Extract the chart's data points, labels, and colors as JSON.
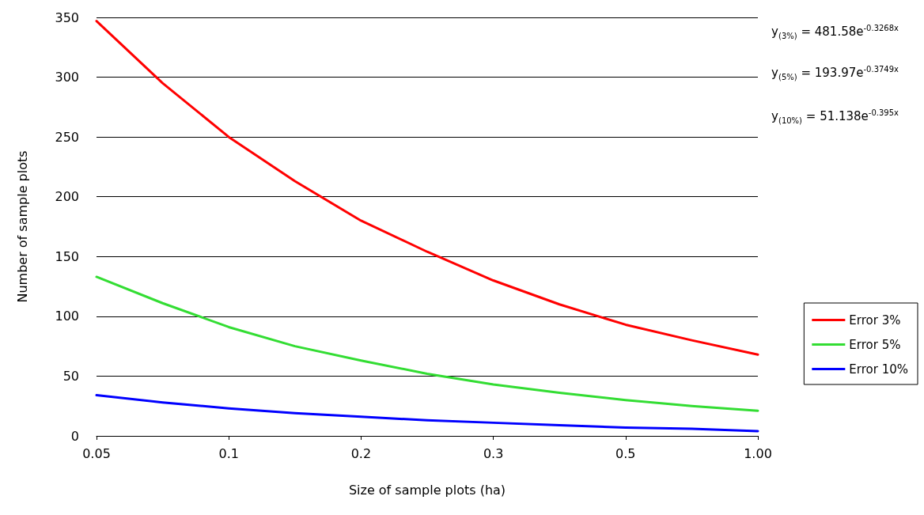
{
  "chart_data": {
    "type": "line",
    "xlabel": "Size of sample plots (ha)",
    "ylabel": "Number of sample plots",
    "categories": [
      "0.05",
      null,
      "0.1",
      null,
      "0.2",
      null,
      "0.3",
      null,
      "0.5",
      null,
      "1.00"
    ],
    "ylim": [
      0,
      350
    ],
    "yticks": [
      0,
      50,
      100,
      150,
      200,
      250,
      300,
      350
    ],
    "series": [
      {
        "name": "Error 3%",
        "color": "#ff0000",
        "values": [
          347,
          295,
          250,
          213,
          180,
          154,
          130,
          110,
          93,
          80,
          68
        ]
      },
      {
        "name": "Error 5%",
        "color": "#33dd33",
        "values": [
          133,
          111,
          91,
          75,
          63,
          52,
          43,
          36,
          30,
          25,
          21
        ]
      },
      {
        "name": "Error 10%",
        "color": "#0000ff",
        "values": [
          34,
          28,
          23,
          19,
          16,
          13,
          11,
          9,
          7,
          6,
          4
        ]
      }
    ],
    "annotations": [
      "y$_{(3%)}$ = 481.58e$^{-0.3268x}$",
      "y$_{(5%)}$ = 193.97e$^{-0.3749x}$",
      "y$_{(10%)}$ = 51.138e$^{-0.395x}$"
    ],
    "grid": "y",
    "legend": "right",
    "marker": "none",
    "line_style": "solid"
  }
}
